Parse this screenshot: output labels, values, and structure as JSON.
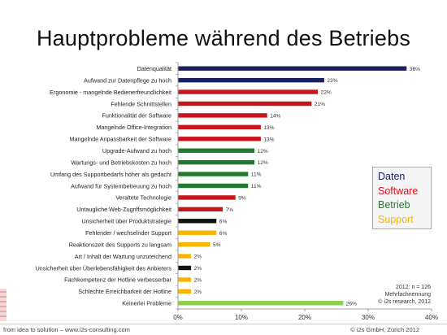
{
  "title": "Hauptprobleme während des Betriebs",
  "chart_data": {
    "type": "bar",
    "orientation": "horizontal",
    "categories": [
      "Datenqualität",
      "Aufwand zur Datenpflege zu hoch",
      "Ergonomie - mangelnde Bedienerfreundlichkeit",
      "Fehlende Schnittstellen",
      "Funktionalität der Software",
      "Mangelnde Office-Integration",
      "Mangelnde Anpassbarkeit der Software",
      "Upgrade-Aufwand zu hoch",
      "Wartungs- und Betriebskosten zu hoch",
      "Umfang des Supportbedarfs höher als gedacht",
      "Aufwand für Systembetreuung zu hoch",
      "Veraltete Technologie",
      "Untaugliche Web-Zugriffsmöglichkeit",
      "Unsicherheit über Produktstrategie",
      "Fehlender / wechselnder Support",
      "Reaktionszeit des Supports zu langsam",
      "Art / Inhalt der Wartung unzureichend",
      "Unsicherheit über Überlebensfähigkeit des Anbieters",
      "Fachkompetenz der Hotline verbesserbar",
      "Schlechte Erreichbarkeit der Hotline",
      "Keinerlei Probleme"
    ],
    "values": [
      36,
      23,
      22,
      21,
      14,
      13,
      13,
      12,
      12,
      11,
      11,
      9,
      7,
      6,
      6,
      5,
      2,
      2,
      2,
      2,
      26
    ],
    "value_labels": [
      "36%",
      "23%",
      "22%",
      "21%",
      "14%",
      "13%",
      "13%",
      "12%",
      "12%",
      "11%",
      "11%",
      "9%",
      "7%",
      "6%",
      "6%",
      "5%",
      "2%",
      "2%",
      "2%",
      "2%",
      "26%"
    ],
    "bar_groups": [
      "daten",
      "daten",
      "software",
      "software",
      "software",
      "software",
      "software",
      "betrieb",
      "betrieb",
      "betrieb",
      "betrieb",
      "software",
      "software",
      "other",
      "support",
      "support",
      "support",
      "other",
      "support",
      "support",
      "none"
    ],
    "xlim": [
      0,
      40
    ],
    "x_ticks": [
      0,
      10,
      20,
      30,
      40
    ],
    "x_tick_labels": [
      "0%",
      "10%",
      "20%",
      "30%",
      "40%"
    ],
    "legend_placement": "right",
    "grid": false
  },
  "colors": {
    "daten": "#1a1f5e",
    "software": "#c8151b",
    "betrieb": "#1f7a2e",
    "support": "#f7b500",
    "other": "#111111",
    "none": "#8bd04a"
  },
  "legend": [
    {
      "label": "Daten",
      "color": "#1a1f5e"
    },
    {
      "label": "Software",
      "color": "#e0141b"
    },
    {
      "label": "Betrieb",
      "color": "#1f7a2e"
    },
    {
      "label": "Support",
      "color": "#f7b500"
    }
  ],
  "note": {
    "line1": "2012: n = 126",
    "line2": "Mehrfachnennung",
    "line3": "© i2s research, 2012"
  },
  "footer": {
    "left": "from idea to solution – www.i2s-consulting.com",
    "right": "© i2s GmbH, Zürich  2012"
  }
}
